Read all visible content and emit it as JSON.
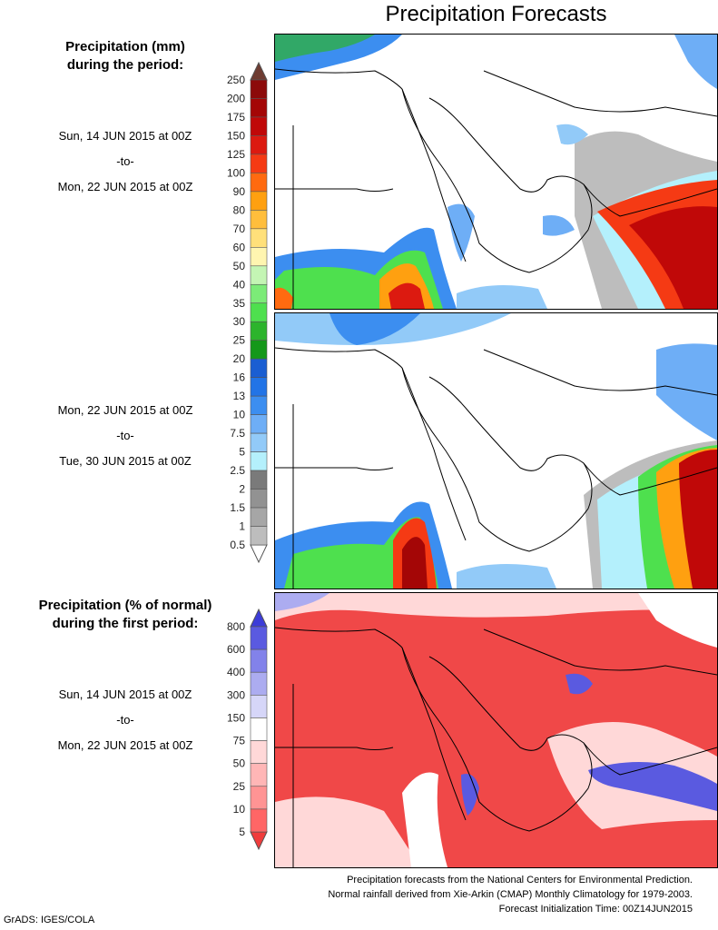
{
  "title": "Precipitation Forecasts",
  "precip_legend": {
    "heading_line1": "Precipitation (mm)",
    "heading_line2": "during the period:",
    "labels": [
      "250",
      "200",
      "175",
      "150",
      "125",
      "100",
      "90",
      "80",
      "70",
      "60",
      "50",
      "40",
      "35",
      "30",
      "25",
      "20",
      "16",
      "13",
      "10",
      "7.5",
      "5",
      "2.5",
      "2",
      "1.5",
      "1",
      "0.5"
    ],
    "colors": [
      "#8c0a0a",
      "#a40606",
      "#c00808",
      "#dc1a10",
      "#f53a14",
      "#ff6a10",
      "#ffa010",
      "#ffbe3c",
      "#ffe07a",
      "#fff5b0",
      "#c4f5b4",
      "#7ceb78",
      "#4ee04e",
      "#2cb42c",
      "#14981a",
      "#1a5ed2",
      "#2274e6",
      "#3c8ef0",
      "#6eaef6",
      "#92caf8",
      "#b4f0fc",
      "#7a7a7a",
      "#929292",
      "#a6a6a6",
      "#bdbdbd"
    ],
    "over_color": "#6e3c32",
    "under_color": "#ffffff"
  },
  "period1": {
    "start": "Sun, 14 JUN 2015 at 00Z",
    "sep": "-to-",
    "end": "Mon, 22 JUN 2015 at 00Z"
  },
  "period2": {
    "start": "Mon, 22 JUN 2015 at 00Z",
    "sep": "-to-",
    "end": "Tue, 30 JUN 2015 at 00Z"
  },
  "pct_legend": {
    "heading_line1": "Precipitation (% of normal)",
    "heading_line2": "during the first period:",
    "labels": [
      "800",
      "600",
      "400",
      "300",
      "150",
      "75",
      "50",
      "25",
      "10",
      "5"
    ],
    "colors": [
      "#5a5ae0",
      "#8282ea",
      "#acacf0",
      "#d6d6f8",
      "#ffffff",
      "#ffd8d8",
      "#ffb6b6",
      "#ff9494",
      "#ff6666"
    ],
    "over_color": "#3c3cd8",
    "under_color": "#f03c3c"
  },
  "period3": {
    "start": "Sun, 14 JUN 2015 at 00Z",
    "sep": "-to-",
    "end": "Mon, 22 JUN 2015 at 00Z"
  },
  "footer": {
    "line1": "Precipitation forecasts from the National Centers for Environmental Prediction.",
    "line2": "Normal rainfall derived from Xie-Arkin (CMAP) Monthly Climatology for 1979-2003.",
    "line3": "Forecast Initialization Time: 00Z14JUN2015"
  },
  "credit": "GrADS: IGES/COLA"
}
